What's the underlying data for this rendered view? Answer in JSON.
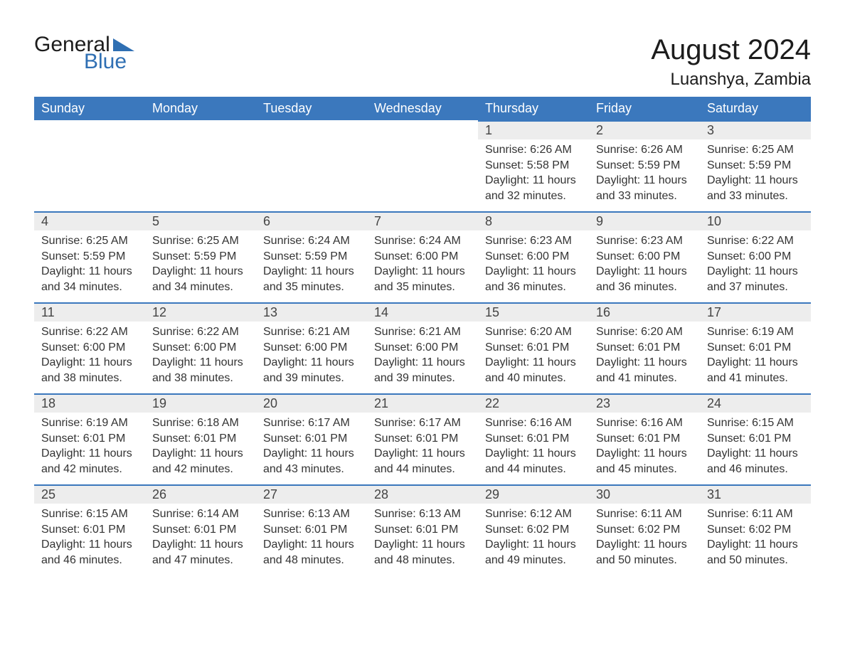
{
  "logo": {
    "word1": "General",
    "word2": "Blue",
    "brand_color": "#2f6fb3"
  },
  "title": "August 2024",
  "subtitle": "Luanshya, Zambia",
  "colors": {
    "header_bg": "#3b78bd",
    "header_text": "#ffffff",
    "daynum_bg": "#ededed",
    "daynum_border": "#3b78bd",
    "text": "#333333",
    "page_bg": "#ffffff"
  },
  "day_headers": [
    "Sunday",
    "Monday",
    "Tuesday",
    "Wednesday",
    "Thursday",
    "Friday",
    "Saturday"
  ],
  "weeks": [
    [
      null,
      null,
      null,
      null,
      {
        "n": "1",
        "sunrise": "Sunrise: 6:26 AM",
        "sunset": "Sunset: 5:58 PM",
        "dl": "Daylight: 11 hours and 32 minutes."
      },
      {
        "n": "2",
        "sunrise": "Sunrise: 6:26 AM",
        "sunset": "Sunset: 5:59 PM",
        "dl": "Daylight: 11 hours and 33 minutes."
      },
      {
        "n": "3",
        "sunrise": "Sunrise: 6:25 AM",
        "sunset": "Sunset: 5:59 PM",
        "dl": "Daylight: 11 hours and 33 minutes."
      }
    ],
    [
      {
        "n": "4",
        "sunrise": "Sunrise: 6:25 AM",
        "sunset": "Sunset: 5:59 PM",
        "dl": "Daylight: 11 hours and 34 minutes."
      },
      {
        "n": "5",
        "sunrise": "Sunrise: 6:25 AM",
        "sunset": "Sunset: 5:59 PM",
        "dl": "Daylight: 11 hours and 34 minutes."
      },
      {
        "n": "6",
        "sunrise": "Sunrise: 6:24 AM",
        "sunset": "Sunset: 5:59 PM",
        "dl": "Daylight: 11 hours and 35 minutes."
      },
      {
        "n": "7",
        "sunrise": "Sunrise: 6:24 AM",
        "sunset": "Sunset: 6:00 PM",
        "dl": "Daylight: 11 hours and 35 minutes."
      },
      {
        "n": "8",
        "sunrise": "Sunrise: 6:23 AM",
        "sunset": "Sunset: 6:00 PM",
        "dl": "Daylight: 11 hours and 36 minutes."
      },
      {
        "n": "9",
        "sunrise": "Sunrise: 6:23 AM",
        "sunset": "Sunset: 6:00 PM",
        "dl": "Daylight: 11 hours and 36 minutes."
      },
      {
        "n": "10",
        "sunrise": "Sunrise: 6:22 AM",
        "sunset": "Sunset: 6:00 PM",
        "dl": "Daylight: 11 hours and 37 minutes."
      }
    ],
    [
      {
        "n": "11",
        "sunrise": "Sunrise: 6:22 AM",
        "sunset": "Sunset: 6:00 PM",
        "dl": "Daylight: 11 hours and 38 minutes."
      },
      {
        "n": "12",
        "sunrise": "Sunrise: 6:22 AM",
        "sunset": "Sunset: 6:00 PM",
        "dl": "Daylight: 11 hours and 38 minutes."
      },
      {
        "n": "13",
        "sunrise": "Sunrise: 6:21 AM",
        "sunset": "Sunset: 6:00 PM",
        "dl": "Daylight: 11 hours and 39 minutes."
      },
      {
        "n": "14",
        "sunrise": "Sunrise: 6:21 AM",
        "sunset": "Sunset: 6:00 PM",
        "dl": "Daylight: 11 hours and 39 minutes."
      },
      {
        "n": "15",
        "sunrise": "Sunrise: 6:20 AM",
        "sunset": "Sunset: 6:01 PM",
        "dl": "Daylight: 11 hours and 40 minutes."
      },
      {
        "n": "16",
        "sunrise": "Sunrise: 6:20 AM",
        "sunset": "Sunset: 6:01 PM",
        "dl": "Daylight: 11 hours and 41 minutes."
      },
      {
        "n": "17",
        "sunrise": "Sunrise: 6:19 AM",
        "sunset": "Sunset: 6:01 PM",
        "dl": "Daylight: 11 hours and 41 minutes."
      }
    ],
    [
      {
        "n": "18",
        "sunrise": "Sunrise: 6:19 AM",
        "sunset": "Sunset: 6:01 PM",
        "dl": "Daylight: 11 hours and 42 minutes."
      },
      {
        "n": "19",
        "sunrise": "Sunrise: 6:18 AM",
        "sunset": "Sunset: 6:01 PM",
        "dl": "Daylight: 11 hours and 42 minutes."
      },
      {
        "n": "20",
        "sunrise": "Sunrise: 6:17 AM",
        "sunset": "Sunset: 6:01 PM",
        "dl": "Daylight: 11 hours and 43 minutes."
      },
      {
        "n": "21",
        "sunrise": "Sunrise: 6:17 AM",
        "sunset": "Sunset: 6:01 PM",
        "dl": "Daylight: 11 hours and 44 minutes."
      },
      {
        "n": "22",
        "sunrise": "Sunrise: 6:16 AM",
        "sunset": "Sunset: 6:01 PM",
        "dl": "Daylight: 11 hours and 44 minutes."
      },
      {
        "n": "23",
        "sunrise": "Sunrise: 6:16 AM",
        "sunset": "Sunset: 6:01 PM",
        "dl": "Daylight: 11 hours and 45 minutes."
      },
      {
        "n": "24",
        "sunrise": "Sunrise: 6:15 AM",
        "sunset": "Sunset: 6:01 PM",
        "dl": "Daylight: 11 hours and 46 minutes."
      }
    ],
    [
      {
        "n": "25",
        "sunrise": "Sunrise: 6:15 AM",
        "sunset": "Sunset: 6:01 PM",
        "dl": "Daylight: 11 hours and 46 minutes."
      },
      {
        "n": "26",
        "sunrise": "Sunrise: 6:14 AM",
        "sunset": "Sunset: 6:01 PM",
        "dl": "Daylight: 11 hours and 47 minutes."
      },
      {
        "n": "27",
        "sunrise": "Sunrise: 6:13 AM",
        "sunset": "Sunset: 6:01 PM",
        "dl": "Daylight: 11 hours and 48 minutes."
      },
      {
        "n": "28",
        "sunrise": "Sunrise: 6:13 AM",
        "sunset": "Sunset: 6:01 PM",
        "dl": "Daylight: 11 hours and 48 minutes."
      },
      {
        "n": "29",
        "sunrise": "Sunrise: 6:12 AM",
        "sunset": "Sunset: 6:02 PM",
        "dl": "Daylight: 11 hours and 49 minutes."
      },
      {
        "n": "30",
        "sunrise": "Sunrise: 6:11 AM",
        "sunset": "Sunset: 6:02 PM",
        "dl": "Daylight: 11 hours and 50 minutes."
      },
      {
        "n": "31",
        "sunrise": "Sunrise: 6:11 AM",
        "sunset": "Sunset: 6:02 PM",
        "dl": "Daylight: 11 hours and 50 minutes."
      }
    ]
  ]
}
